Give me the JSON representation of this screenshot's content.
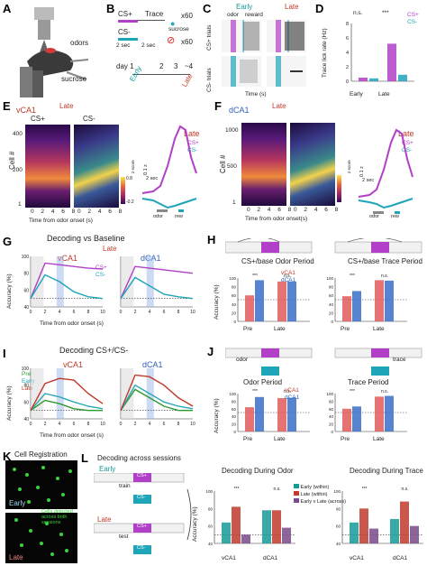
{
  "labels": {
    "A": "A",
    "B": "B",
    "C": "C",
    "D": "D",
    "E": "E",
    "F": "F",
    "G": "G",
    "H": "H",
    "I": "I",
    "J": "J",
    "K": "K",
    "L": "L"
  },
  "panelA": {
    "odors": "odors",
    "sucrose": "sucrose"
  },
  "panelB": {
    "cs_plus": "CS+",
    "trace": "Trace",
    "x60a": "x60",
    "sucrose": "sucrose",
    "cs_minus": "CS-",
    "sec2a": "2 sec",
    "sec2b": "2 sec",
    "x60b": "x60",
    "day": "day 1",
    "d2": "2",
    "d3": "3",
    "d4": "~4",
    "early": "Early",
    "late": "Late"
  },
  "panelC": {
    "early": "Early",
    "late": "Late",
    "odor": "odor",
    "reward": "reward",
    "cs_plus_trials": "CS+ trials",
    "cs_minus_trials": "CS- trials",
    "time": "Time (s)",
    "ticks": [
      "-5",
      "0",
      "5",
      "10",
      "-5",
      "0",
      "5",
      "10"
    ]
  },
  "panelD": {
    "ylabel": "Trace lick rate (Hz)",
    "cs_plus": "CS+",
    "cs_minus": "CS-",
    "ns": "n.s.",
    "sig": "***",
    "early": "Early",
    "late": "Late",
    "yticks": [
      "0",
      "2",
      "4",
      "6",
      "8"
    ]
  },
  "panelE": {
    "region": "vCA1",
    "late": "Late",
    "cs_plus": "CS+",
    "cs_minus": "CS-",
    "ylabel": "Cell #",
    "yticks": [
      "400",
      "200",
      "1"
    ],
    "xticks": [
      "0",
      "2",
      "4",
      "6",
      "8",
      "0",
      "2",
      "4",
      "6",
      "8"
    ],
    "xlabel": "Time from odor onset (s)",
    "late2": "Late",
    "cs_plus2": "CS+",
    "cs_minus2": "CS-",
    "scale_z": "0.1 z",
    "scale_s": "2 sec",
    "odor": "odor",
    "rew": "rew",
    "zscore": "z-score",
    "cb_hi": "0.8",
    "cb_lo": "-0.2"
  },
  "panelF": {
    "region": "dCA1",
    "late": "Late",
    "ylabel": "Cell #",
    "yticks": [
      "1000",
      "500",
      "1"
    ],
    "xticks": [
      "0",
      "2",
      "4",
      "6",
      "8",
      "0",
      "2",
      "4",
      "6",
      "8"
    ],
    "xlabel": "Time from odor onset(s)",
    "late2": "Late",
    "cs_plus2": "CS+",
    "cs_minus2": "CS-",
    "scale_z": "0.1 z",
    "scale_s": "2 sec",
    "odor": "odor",
    "rew": "rew",
    "zscore": "z-score"
  },
  "panelG": {
    "title": "Decoding vs Baseline",
    "late": "Late",
    "vca1": "vCA1",
    "dca1": "dCA1",
    "cs_plus": "CS+",
    "cs_minus": "CS-",
    "ylabel": "Accuracy (%)",
    "yticks": [
      "100",
      "80",
      "60",
      "40"
    ],
    "xticks": [
      "0",
      "2",
      "4",
      "6",
      "8",
      "10",
      "0",
      "2",
      "4",
      "6",
      "8",
      "10"
    ],
    "xlabel": "Time from odor onset (s)"
  },
  "panelH": {
    "title1": "CS+/base\nOdor Period",
    "title2": "CS+/base\nTrace Period",
    "vca1": "vCA1",
    "dca1": "dCA1",
    "ylabel": "Accuracy (%)",
    "yticks": [
      "100",
      "80",
      "60",
      "40",
      "20",
      "0"
    ],
    "pre": "Pre",
    "late": "Late",
    "sig": "***",
    "ns": "n.s."
  },
  "panelI": {
    "title": "Decoding CS+/CS-",
    "vca1": "vCA1",
    "dca1": "dCA1",
    "pre": "Pre",
    "early": "Early",
    "late": "Late",
    "ylabel": "Accuracy (%)",
    "yticks": [
      "100",
      "80",
      "60",
      "40"
    ],
    "xticks": [
      "0",
      "2",
      "4",
      "6",
      "8",
      "10",
      "0",
      "2",
      "4",
      "6",
      "8",
      "10"
    ],
    "xlabel": "Time from odor onset (s)"
  },
  "panelJ": {
    "odor": "odor",
    "trace": "trace",
    "title1": "Odor Period",
    "title2": "Trace Period",
    "vca1": "vCA1",
    "dca1": "dCA1",
    "ylabel": "Accuracy (%)",
    "yticks": [
      "100",
      "80",
      "60",
      "40",
      "20",
      "0"
    ],
    "pre": "Pre",
    "late": "Late",
    "sig": "***",
    "ns": "n.s."
  },
  "panelK": {
    "title": "Cell Registration",
    "early": "Early",
    "late": "Late",
    "note": "Cells detected across both sessions"
  },
  "panelL": {
    "title": "Decoding across sessions",
    "early": "Early",
    "late": "Late",
    "train": "train",
    "test": "test",
    "cs_plus": "CS+",
    "cs_minus": "CS-",
    "chart1": "Decoding During Odor",
    "chart2": "Decoding During Trace",
    "legend_early": "Early (within)",
    "legend_late": "Late (within)",
    "legend_across": "Early v Late (across)",
    "ylabel": "Accuracy (%)",
    "yticks": [
      "100",
      "80",
      "60",
      "40"
    ],
    "vca1": "vCA1",
    "dca1": "dCA1",
    "sig": "***",
    "ns": "n.s."
  },
  "chart_data": [
    {
      "type": "bar",
      "panel": "D",
      "categories": [
        "Early",
        "Late"
      ],
      "series": [
        {
          "name": "CS+",
          "values": [
            0.5,
            5.2
          ]
        },
        {
          "name": "CS-",
          "values": [
            0.4,
            0.9
          ]
        }
      ],
      "ylabel": "Trace lick rate (Hz)",
      "ylim": [
        0,
        8
      ]
    },
    {
      "type": "line",
      "panel": "G-vCA1",
      "x": [
        0,
        2,
        4,
        6,
        8,
        10
      ],
      "series": [
        {
          "name": "CS+",
          "values": [
            50,
            92,
            90,
            88,
            86,
            85
          ]
        },
        {
          "name": "CS-",
          "values": [
            50,
            78,
            70,
            58,
            52,
            50
          ]
        }
      ],
      "ylim": [
        40,
        100
      ]
    },
    {
      "type": "line",
      "panel": "G-dCA1",
      "x": [
        0,
        2,
        4,
        6,
        8,
        10
      ],
      "series": [
        {
          "name": "CS+",
          "values": [
            50,
            88,
            86,
            84,
            82,
            80
          ]
        },
        {
          "name": "CS-",
          "values": [
            50,
            75,
            65,
            55,
            52,
            50
          ]
        }
      ],
      "ylim": [
        40,
        100
      ]
    },
    {
      "type": "bar",
      "panel": "H-Odor",
      "categories": [
        "Pre",
        "Late"
      ],
      "series": [
        {
          "name": "vCA1",
          "values": [
            60,
            92
          ]
        },
        {
          "name": "dCA1",
          "values": [
            95,
            92
          ]
        }
      ],
      "ylim": [
        0,
        100
      ]
    },
    {
      "type": "bar",
      "panel": "H-Trace",
      "categories": [
        "Pre",
        "Late"
      ],
      "series": [
        {
          "name": "vCA1",
          "values": [
            58,
            95
          ]
        },
        {
          "name": "dCA1",
          "values": [
            70,
            94
          ]
        }
      ],
      "ylim": [
        0,
        100
      ]
    },
    {
      "type": "line",
      "panel": "I-vCA1",
      "x": [
        0,
        2,
        4,
        6,
        8,
        10
      ],
      "series": [
        {
          "name": "Pre",
          "values": [
            50,
            62,
            58,
            52,
            50,
            50
          ]
        },
        {
          "name": "Early",
          "values": [
            50,
            70,
            66,
            60,
            55,
            52
          ]
        },
        {
          "name": "Late",
          "values": [
            50,
            82,
            88,
            86,
            70,
            58
          ]
        }
      ],
      "ylim": [
        40,
        100
      ]
    },
    {
      "type": "line",
      "panel": "I-dCA1",
      "x": [
        0,
        2,
        4,
        6,
        8,
        10
      ],
      "series": [
        {
          "name": "Pre",
          "values": [
            50,
            75,
            65,
            55,
            50,
            50
          ]
        },
        {
          "name": "Early",
          "values": [
            50,
            80,
            70,
            60,
            55,
            52
          ]
        },
        {
          "name": "Late",
          "values": [
            50,
            92,
            90,
            80,
            65,
            55
          ]
        }
      ],
      "ylim": [
        40,
        100
      ]
    },
    {
      "type": "bar",
      "panel": "J-Odor",
      "categories": [
        "Pre",
        "Late"
      ],
      "series": [
        {
          "name": "vCA1",
          "values": [
            64,
            88
          ]
        },
        {
          "name": "dCA1",
          "values": [
            91,
            89
          ]
        }
      ],
      "ylim": [
        0,
        100
      ]
    },
    {
      "type": "bar",
      "panel": "J-Trace",
      "categories": [
        "Pre",
        "Late"
      ],
      "series": [
        {
          "name": "vCA1",
          "values": [
            60,
            92
          ]
        },
        {
          "name": "dCA1",
          "values": [
            66,
            94
          ]
        }
      ],
      "ylim": [
        0,
        100
      ]
    },
    {
      "type": "bar",
      "panel": "L-Odor",
      "categories": [
        "vCA1",
        "dCA1"
      ],
      "series": [
        {
          "name": "Early (within)",
          "values": [
            64,
            78
          ]
        },
        {
          "name": "Late (within)",
          "values": [
            82,
            78
          ]
        },
        {
          "name": "Early v Late (across)",
          "values": [
            50,
            58
          ]
        }
      ],
      "ylim": [
        40,
        100
      ]
    },
    {
      "type": "bar",
      "panel": "L-Trace",
      "categories": [
        "vCA1",
        "dCA1"
      ],
      "series": [
        {
          "name": "Early (within)",
          "values": [
            64,
            68
          ]
        },
        {
          "name": "Late (within)",
          "values": [
            80,
            88
          ]
        },
        {
          "name": "Early v Late (across)",
          "values": [
            57,
            60
          ]
        }
      ],
      "ylim": [
        40,
        100
      ]
    }
  ]
}
